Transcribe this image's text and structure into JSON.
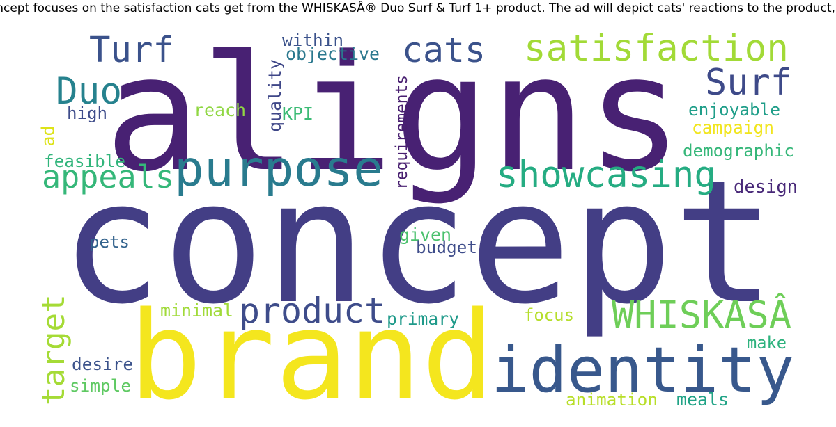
{
  "chart_data": {
    "type": "wordcloud",
    "title": "…concept focuses on the satisfaction cats get from the WHISKASÂ® Duo Surf & Turf 1+ product. The ad will depict cats' reactions to the product, en…",
    "words": [
      {
        "text": "concept",
        "color": "#433e85"
      },
      {
        "text": "aligns",
        "color": "#482173"
      },
      {
        "text": "brand",
        "color": "#f4e61e"
      },
      {
        "text": "identity",
        "color": "#38588c"
      },
      {
        "text": "purpose",
        "color": "#297b8e"
      },
      {
        "text": "satisfaction",
        "color": "#a2da37"
      },
      {
        "text": "showcasing",
        "color": "#25ac82"
      },
      {
        "text": "product",
        "color": "#3e4c8a"
      },
      {
        "text": "WHISKASÂ",
        "color": "#6ece58"
      },
      {
        "text": "Turf",
        "color": "#3b528b"
      },
      {
        "text": "cats",
        "color": "#3b528b"
      },
      {
        "text": "Surf",
        "color": "#3e4a89"
      },
      {
        "text": "Duo",
        "color": "#26828e"
      },
      {
        "text": "appeals",
        "color": "#35b779"
      },
      {
        "text": "target",
        "color": "#a5db36"
      },
      {
        "text": "requirements",
        "color": "#481f70"
      },
      {
        "text": "quality",
        "color": "#3f4788"
      },
      {
        "text": "within",
        "color": "#3b528b"
      },
      {
        "text": "objective",
        "color": "#2a788e"
      },
      {
        "text": "high",
        "color": "#3e4c8a"
      },
      {
        "text": "reach",
        "color": "#90d743"
      },
      {
        "text": "KPI",
        "color": "#3bbb75"
      },
      {
        "text": "ad",
        "color": "#dde318"
      },
      {
        "text": "feasible",
        "color": "#31b57b"
      },
      {
        "text": "enjoyable",
        "color": "#1f9e89"
      },
      {
        "text": "campaign",
        "color": "#f1e51d"
      },
      {
        "text": "demographic",
        "color": "#35b779"
      },
      {
        "text": "design",
        "color": "#482878"
      },
      {
        "text": "pets",
        "color": "#33638d"
      },
      {
        "text": "given",
        "color": "#4ac16d"
      },
      {
        "text": "budget",
        "color": "#3e4c8a"
      },
      {
        "text": "minimal",
        "color": "#a0da39"
      },
      {
        "text": "primary",
        "color": "#1f9a8a"
      },
      {
        "text": "focus",
        "color": "#b5de2b"
      },
      {
        "text": "make",
        "color": "#2db27d"
      },
      {
        "text": "desire",
        "color": "#3b528b"
      },
      {
        "text": "simple",
        "color": "#5ec962"
      },
      {
        "text": "animation",
        "color": "#b8de29"
      },
      {
        "text": "meals",
        "color": "#20a386"
      }
    ]
  }
}
